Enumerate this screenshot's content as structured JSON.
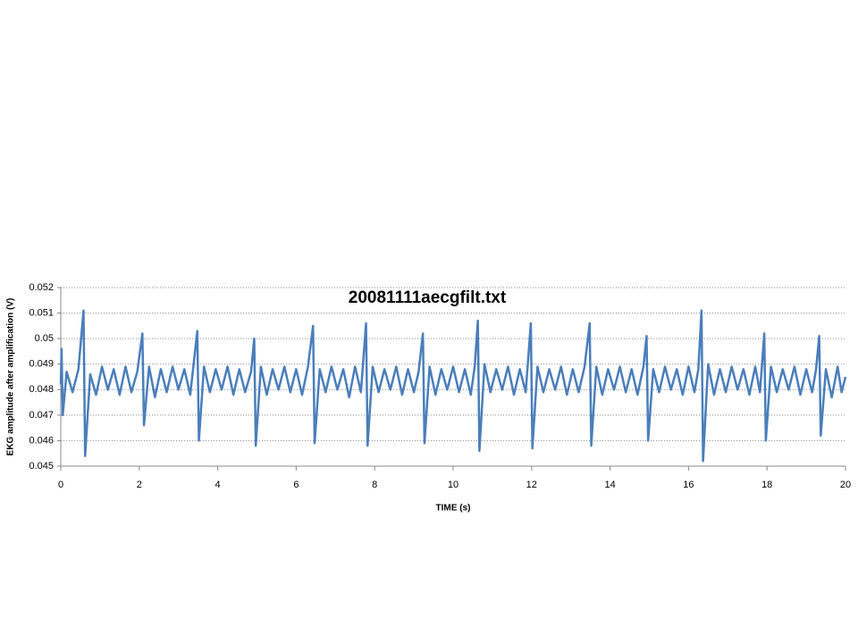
{
  "chart_data": {
    "type": "line",
    "title": "20081111aecgfilt.txt",
    "x_label": "TIME (s)",
    "y_label": "EKG amplitude after amplification  (V)",
    "xlim": [
      0,
      20
    ],
    "xticks": [
      0,
      2,
      4,
      6,
      8,
      10,
      12,
      14,
      16,
      18,
      20
    ],
    "ylim": [
      0.045,
      0.052
    ],
    "yticks": [
      0.045,
      0.046,
      0.047,
      0.048,
      0.049,
      0.05,
      0.051,
      0.052
    ],
    "grid": true,
    "series": [
      {
        "name": "EKG",
        "color": "#4a7ebb",
        "x": [
          0,
          0.02,
          0.05,
          0.15,
          0.3,
          0.45,
          0.58,
          0.62,
          0.75,
          0.9,
          1.05,
          1.2,
          1.35,
          1.5,
          1.65,
          1.8,
          1.95,
          2.08,
          2.12,
          2.25,
          2.4,
          2.55,
          2.7,
          2.85,
          3.0,
          3.15,
          3.3,
          3.48,
          3.52,
          3.65,
          3.8,
          3.95,
          4.1,
          4.25,
          4.4,
          4.55,
          4.7,
          4.85,
          4.93,
          4.97,
          5.1,
          5.25,
          5.4,
          5.55,
          5.7,
          5.85,
          6.0,
          6.15,
          6.3,
          6.43,
          6.47,
          6.6,
          6.75,
          6.9,
          7.05,
          7.2,
          7.35,
          7.5,
          7.65,
          7.78,
          7.82,
          7.95,
          8.1,
          8.25,
          8.4,
          8.55,
          8.7,
          8.85,
          9.0,
          9.12,
          9.23,
          9.27,
          9.4,
          9.55,
          9.7,
          9.85,
          10.0,
          10.15,
          10.3,
          10.45,
          10.55,
          10.63,
          10.67,
          10.8,
          10.95,
          11.1,
          11.25,
          11.4,
          11.55,
          11.7,
          11.85,
          11.98,
          12.02,
          12.15,
          12.3,
          12.45,
          12.6,
          12.75,
          12.9,
          13.05,
          13.2,
          13.35,
          13.48,
          13.52,
          13.65,
          13.8,
          13.95,
          14.1,
          14.25,
          14.4,
          14.55,
          14.7,
          14.85,
          14.93,
          14.97,
          15.1,
          15.25,
          15.4,
          15.55,
          15.7,
          15.85,
          16.0,
          16.15,
          16.25,
          16.33,
          16.37,
          16.5,
          16.65,
          16.8,
          16.95,
          17.1,
          17.25,
          17.4,
          17.55,
          17.7,
          17.82,
          17.93,
          17.97,
          18.1,
          18.25,
          18.4,
          18.55,
          18.7,
          18.85,
          19.0,
          19.15,
          19.25,
          19.33,
          19.37,
          19.5,
          19.65,
          19.8,
          19.9,
          20.0
        ],
        "values": [
          0.0482,
          0.0496,
          0.047,
          0.0487,
          0.0479,
          0.0488,
          0.0511,
          0.0454,
          0.0486,
          0.0478,
          0.0489,
          0.048,
          0.0488,
          0.0478,
          0.0489,
          0.0479,
          0.0487,
          0.0502,
          0.0466,
          0.0489,
          0.0477,
          0.0488,
          0.0479,
          0.0489,
          0.048,
          0.0488,
          0.0478,
          0.0503,
          0.046,
          0.0489,
          0.0479,
          0.0488,
          0.048,
          0.0489,
          0.0478,
          0.0488,
          0.0479,
          0.0487,
          0.05,
          0.0458,
          0.0489,
          0.0478,
          0.0488,
          0.048,
          0.0489,
          0.0479,
          0.0488,
          0.0478,
          0.0489,
          0.0505,
          0.0459,
          0.0488,
          0.0479,
          0.0489,
          0.048,
          0.0488,
          0.0477,
          0.0489,
          0.0479,
          0.0506,
          0.0458,
          0.0489,
          0.0479,
          0.0488,
          0.048,
          0.0489,
          0.0478,
          0.0488,
          0.0479,
          0.0487,
          0.0502,
          0.0459,
          0.0489,
          0.0478,
          0.0488,
          0.048,
          0.0489,
          0.0479,
          0.0488,
          0.0478,
          0.0489,
          0.0507,
          0.0456,
          0.049,
          0.0479,
          0.0488,
          0.048,
          0.0489,
          0.0478,
          0.0488,
          0.0479,
          0.0506,
          0.0457,
          0.0489,
          0.0479,
          0.0488,
          0.048,
          0.0489,
          0.0478,
          0.0488,
          0.0479,
          0.0489,
          0.0506,
          0.0458,
          0.0489,
          0.0478,
          0.0488,
          0.048,
          0.0489,
          0.0479,
          0.0488,
          0.0478,
          0.0489,
          0.0501,
          0.046,
          0.0488,
          0.0479,
          0.0489,
          0.048,
          0.0488,
          0.0478,
          0.0489,
          0.0479,
          0.0488,
          0.0511,
          0.0452,
          0.049,
          0.0478,
          0.0488,
          0.0479,
          0.0489,
          0.048,
          0.0488,
          0.0478,
          0.0489,
          0.0479,
          0.0502,
          0.046,
          0.0489,
          0.0479,
          0.0488,
          0.048,
          0.0489,
          0.0478,
          0.0488,
          0.0479,
          0.0488,
          0.0501,
          0.0462,
          0.0488,
          0.0477,
          0.0489,
          0.0479,
          0.0485
        ]
      }
    ]
  }
}
